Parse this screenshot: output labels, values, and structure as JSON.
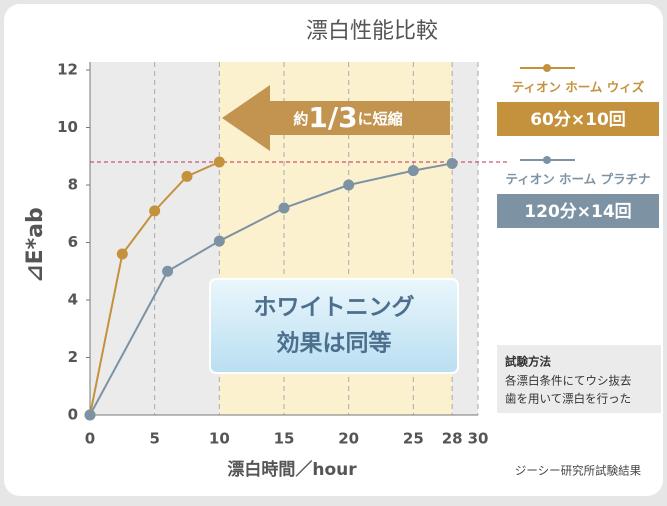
{
  "chart_data": {
    "type": "line",
    "title": "漂白性能比較",
    "x_label": "漂白時間／hour",
    "y_label": "⊿E*ab",
    "xlim": [
      0,
      30
    ],
    "xticks": [
      0,
      5,
      10,
      15,
      20,
      25,
      28,
      30
    ],
    "ylim": [
      0,
      12
    ],
    "yticks": [
      0,
      2,
      4,
      6,
      8,
      10,
      12
    ],
    "highlight_x": [
      10,
      28
    ],
    "reference_y": 8.8,
    "series": [
      {
        "name": "ティオン ホーム ウィズ",
        "label": "60分×10回",
        "color": "#c4923c",
        "x": [
          0,
          2.5,
          5,
          7.5,
          10
        ],
        "values": [
          0,
          5.6,
          7.1,
          8.3,
          8.8
        ]
      },
      {
        "name": "ティオン ホーム プラチナ",
        "label": "120分×14回",
        "color": "#7d93a4",
        "x": [
          0,
          6,
          10,
          15,
          20,
          25,
          28
        ],
        "values": [
          0,
          5,
          6.05,
          7.2,
          8,
          8.5,
          8.75
        ]
      }
    ],
    "arrow_label": [
      "約",
      "1/3",
      "に短縮"
    ],
    "callout": [
      "ホワイトニング",
      "効果は同等"
    ],
    "method_title": "試験方法",
    "method_lines": [
      "各漂白条件にてウシ抜去",
      "歯を用いて漂白を行った"
    ],
    "source": "ジーシー研究所試験結果"
  }
}
